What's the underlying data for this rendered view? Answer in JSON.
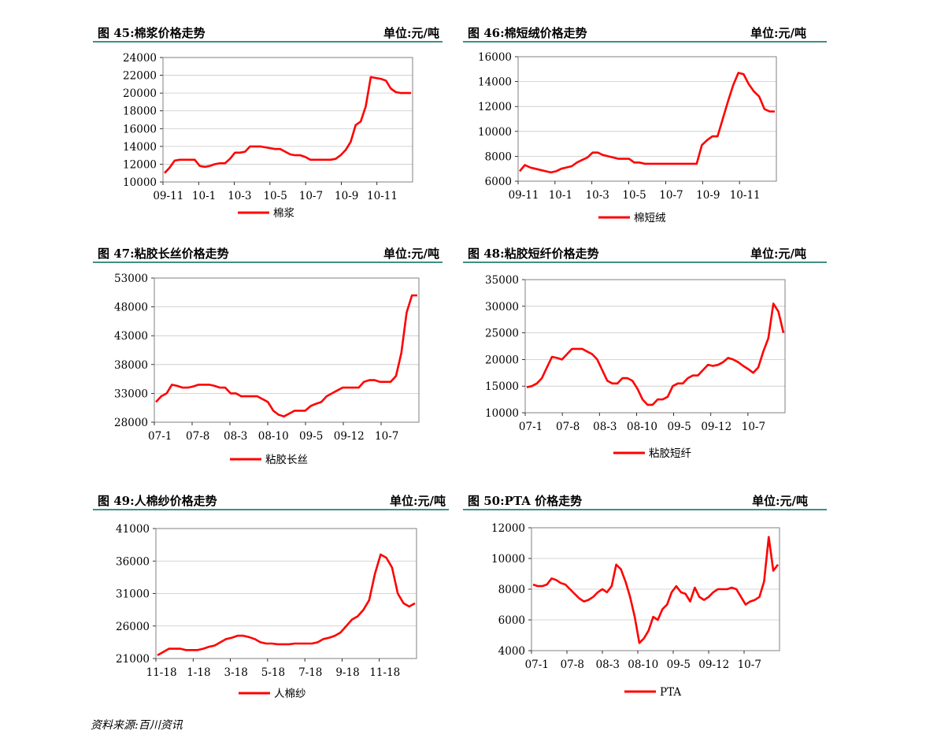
{
  "source": "资料来源:百川资讯",
  "line_color": "#ff0000",
  "header_color": "#3f8f86",
  "chart_data": [
    {
      "type": "line",
      "title": "图 45:棉浆价格走势",
      "unit": "单位:元/吨",
      "ylim": [
        10000,
        24000
      ],
      "yticks": [
        "24000",
        "22000",
        "20000",
        "18000",
        "16000",
        "14000",
        "12000",
        "10000"
      ],
      "xticks": [
        "09-11",
        "10-1",
        "10-3",
        "10-5",
        "10-7",
        "10-9",
        "10-11"
      ],
      "grid": true,
      "legend": "棉浆",
      "series": [
        {
          "name": "棉浆",
          "values": [
            11000,
            11600,
            12400,
            12500,
            12500,
            12500,
            12500,
            11800,
            11700,
            11800,
            12000,
            12100,
            12100,
            12600,
            13300,
            13300,
            13400,
            14000,
            14000,
            14000,
            13900,
            13800,
            13700,
            13700,
            13400,
            13100,
            13000,
            13000,
            12800,
            12500,
            12500,
            12500,
            12500,
            12500,
            12600,
            13000,
            13600,
            14500,
            16400,
            16800,
            18500,
            21800,
            21700,
            21600,
            21400,
            20500,
            20100,
            20000,
            20000,
            20000
          ]
        }
      ]
    },
    {
      "type": "line",
      "title": "图 46:棉短绒价格走势",
      "unit": "单位:元/吨",
      "ylim": [
        6000,
        16000
      ],
      "yticks": [
        "16000",
        "14000",
        "12000",
        "10000",
        "8000",
        "6000"
      ],
      "xticks": [
        "09-11",
        "10-1",
        "10-3",
        "10-5",
        "10-7",
        "10-9",
        "10-11"
      ],
      "grid": true,
      "legend": "棉短绒",
      "series": [
        {
          "name": "棉短绒",
          "values": [
            6800,
            7300,
            7100,
            7000,
            6900,
            6800,
            6700,
            6800,
            7000,
            7100,
            7200,
            7500,
            7700,
            7900,
            8300,
            8300,
            8100,
            8000,
            7900,
            7800,
            7800,
            7800,
            7500,
            7500,
            7400,
            7400,
            7400,
            7400,
            7400,
            7400,
            7400,
            7400,
            7400,
            7400,
            7400,
            8900,
            9300,
            9600,
            9600,
            11000,
            12400,
            13700,
            14700,
            14600,
            13800,
            13200,
            12800,
            11800,
            11600,
            11600
          ]
        }
      ]
    },
    {
      "type": "line",
      "title": "图 47:粘胶长丝价格走势",
      "unit": "单位:元/吨",
      "ylim": [
        28000,
        53000
      ],
      "yticks": [
        "53000",
        "48000",
        "43000",
        "38000",
        "33000",
        "28000"
      ],
      "xticks": [
        "07-1",
        "07-8",
        "08-3",
        "08-10",
        "09-5",
        "09-12",
        "10-7"
      ],
      "grid": true,
      "legend": "粘胶长丝",
      "series": [
        {
          "name": "粘胶长丝",
          "values": [
            31500,
            32500,
            33000,
            34500,
            34300,
            34000,
            34000,
            34200,
            34500,
            34500,
            34500,
            34300,
            34000,
            34000,
            33000,
            33000,
            32500,
            32500,
            32500,
            32500,
            32000,
            31500,
            30000,
            29300,
            29000,
            29500,
            30000,
            30000,
            30000,
            30800,
            31200,
            31500,
            32500,
            33000,
            33500,
            34000,
            34000,
            34000,
            34000,
            35000,
            35300,
            35300,
            35000,
            35000,
            35000,
            36000,
            40000,
            47000,
            50000,
            50000
          ]
        }
      ]
    },
    {
      "type": "line",
      "title": "图 48:粘胶短纤价格走势",
      "unit": "单位:元/吨",
      "ylim": [
        10000,
        35000
      ],
      "yticks": [
        "35000",
        "30000",
        "25000",
        "20000",
        "15000",
        "10000"
      ],
      "xticks": [
        "07-1",
        "07-8",
        "08-3",
        "08-10",
        "09-5",
        "09-12",
        "10-7"
      ],
      "grid": true,
      "legend": "粘胶短纤",
      "series": [
        {
          "name": "粘胶短纤",
          "values": [
            14800,
            15000,
            15500,
            16500,
            18500,
            20500,
            20300,
            20000,
            21000,
            22000,
            22000,
            22000,
            21500,
            21000,
            20000,
            18000,
            16000,
            15500,
            15500,
            16500,
            16500,
            16000,
            14500,
            12500,
            11500,
            11500,
            12500,
            12500,
            13000,
            15000,
            15500,
            15500,
            16500,
            17000,
            17000,
            18000,
            19000,
            18800,
            19000,
            19500,
            20300,
            20000,
            19500,
            18800,
            18200,
            17500,
            18500,
            21500,
            24000,
            30500,
            29000,
            25000
          ]
        }
      ]
    },
    {
      "type": "line",
      "title": "图 49:人棉纱价格走势",
      "unit": "单位:元/吨",
      "ylim": [
        21000,
        41000
      ],
      "yticks": [
        "41000",
        "36000",
        "31000",
        "26000",
        "21000"
      ],
      "xticks": [
        "11-18",
        "1-18",
        "3-18",
        "5-18",
        "7-18",
        "9-18",
        "11-18"
      ],
      "grid": true,
      "legend": "人棉纱",
      "series": [
        {
          "name": "人棉纱",
          "values": [
            21500,
            22000,
            22500,
            22500,
            22500,
            22300,
            22300,
            22300,
            22500,
            22800,
            23000,
            23500,
            24000,
            24200,
            24500,
            24500,
            24300,
            24000,
            23500,
            23300,
            23300,
            23200,
            23200,
            23200,
            23300,
            23300,
            23300,
            23300,
            23500,
            24000,
            24200,
            24500,
            25000,
            26000,
            27000,
            27500,
            28500,
            30000,
            34000,
            37000,
            36500,
            35000,
            31000,
            29500,
            29000,
            29500
          ]
        }
      ]
    },
    {
      "type": "line",
      "title": "图 50:PTA 价格走势",
      "unit": "单位:元/吨",
      "ylim": [
        4000,
        12000
      ],
      "yticks": [
        "12000",
        "10000",
        "8000",
        "6000",
        "4000"
      ],
      "xticks": [
        "07-1",
        "07-8",
        "08-3",
        "08-10",
        "09-5",
        "09-12",
        "10-7"
      ],
      "grid": true,
      "legend": "PTA",
      "series": [
        {
          "name": "PTA",
          "values": [
            8300,
            8200,
            8200,
            8300,
            8700,
            8600,
            8400,
            8300,
            8000,
            7700,
            7400,
            7200,
            7300,
            7500,
            7800,
            8000,
            7800,
            8200,
            9600,
            9300,
            8500,
            7500,
            6200,
            4500,
            4800,
            5300,
            6200,
            6000,
            6700,
            7000,
            7800,
            8200,
            7800,
            7700,
            7200,
            8100,
            7500,
            7300,
            7500,
            7800,
            8000,
            8000,
            8000,
            8100,
            8000,
            7500,
            7000,
            7200,
            7300,
            7500,
            8500,
            11400,
            9200,
            9600
          ]
        }
      ]
    }
  ]
}
